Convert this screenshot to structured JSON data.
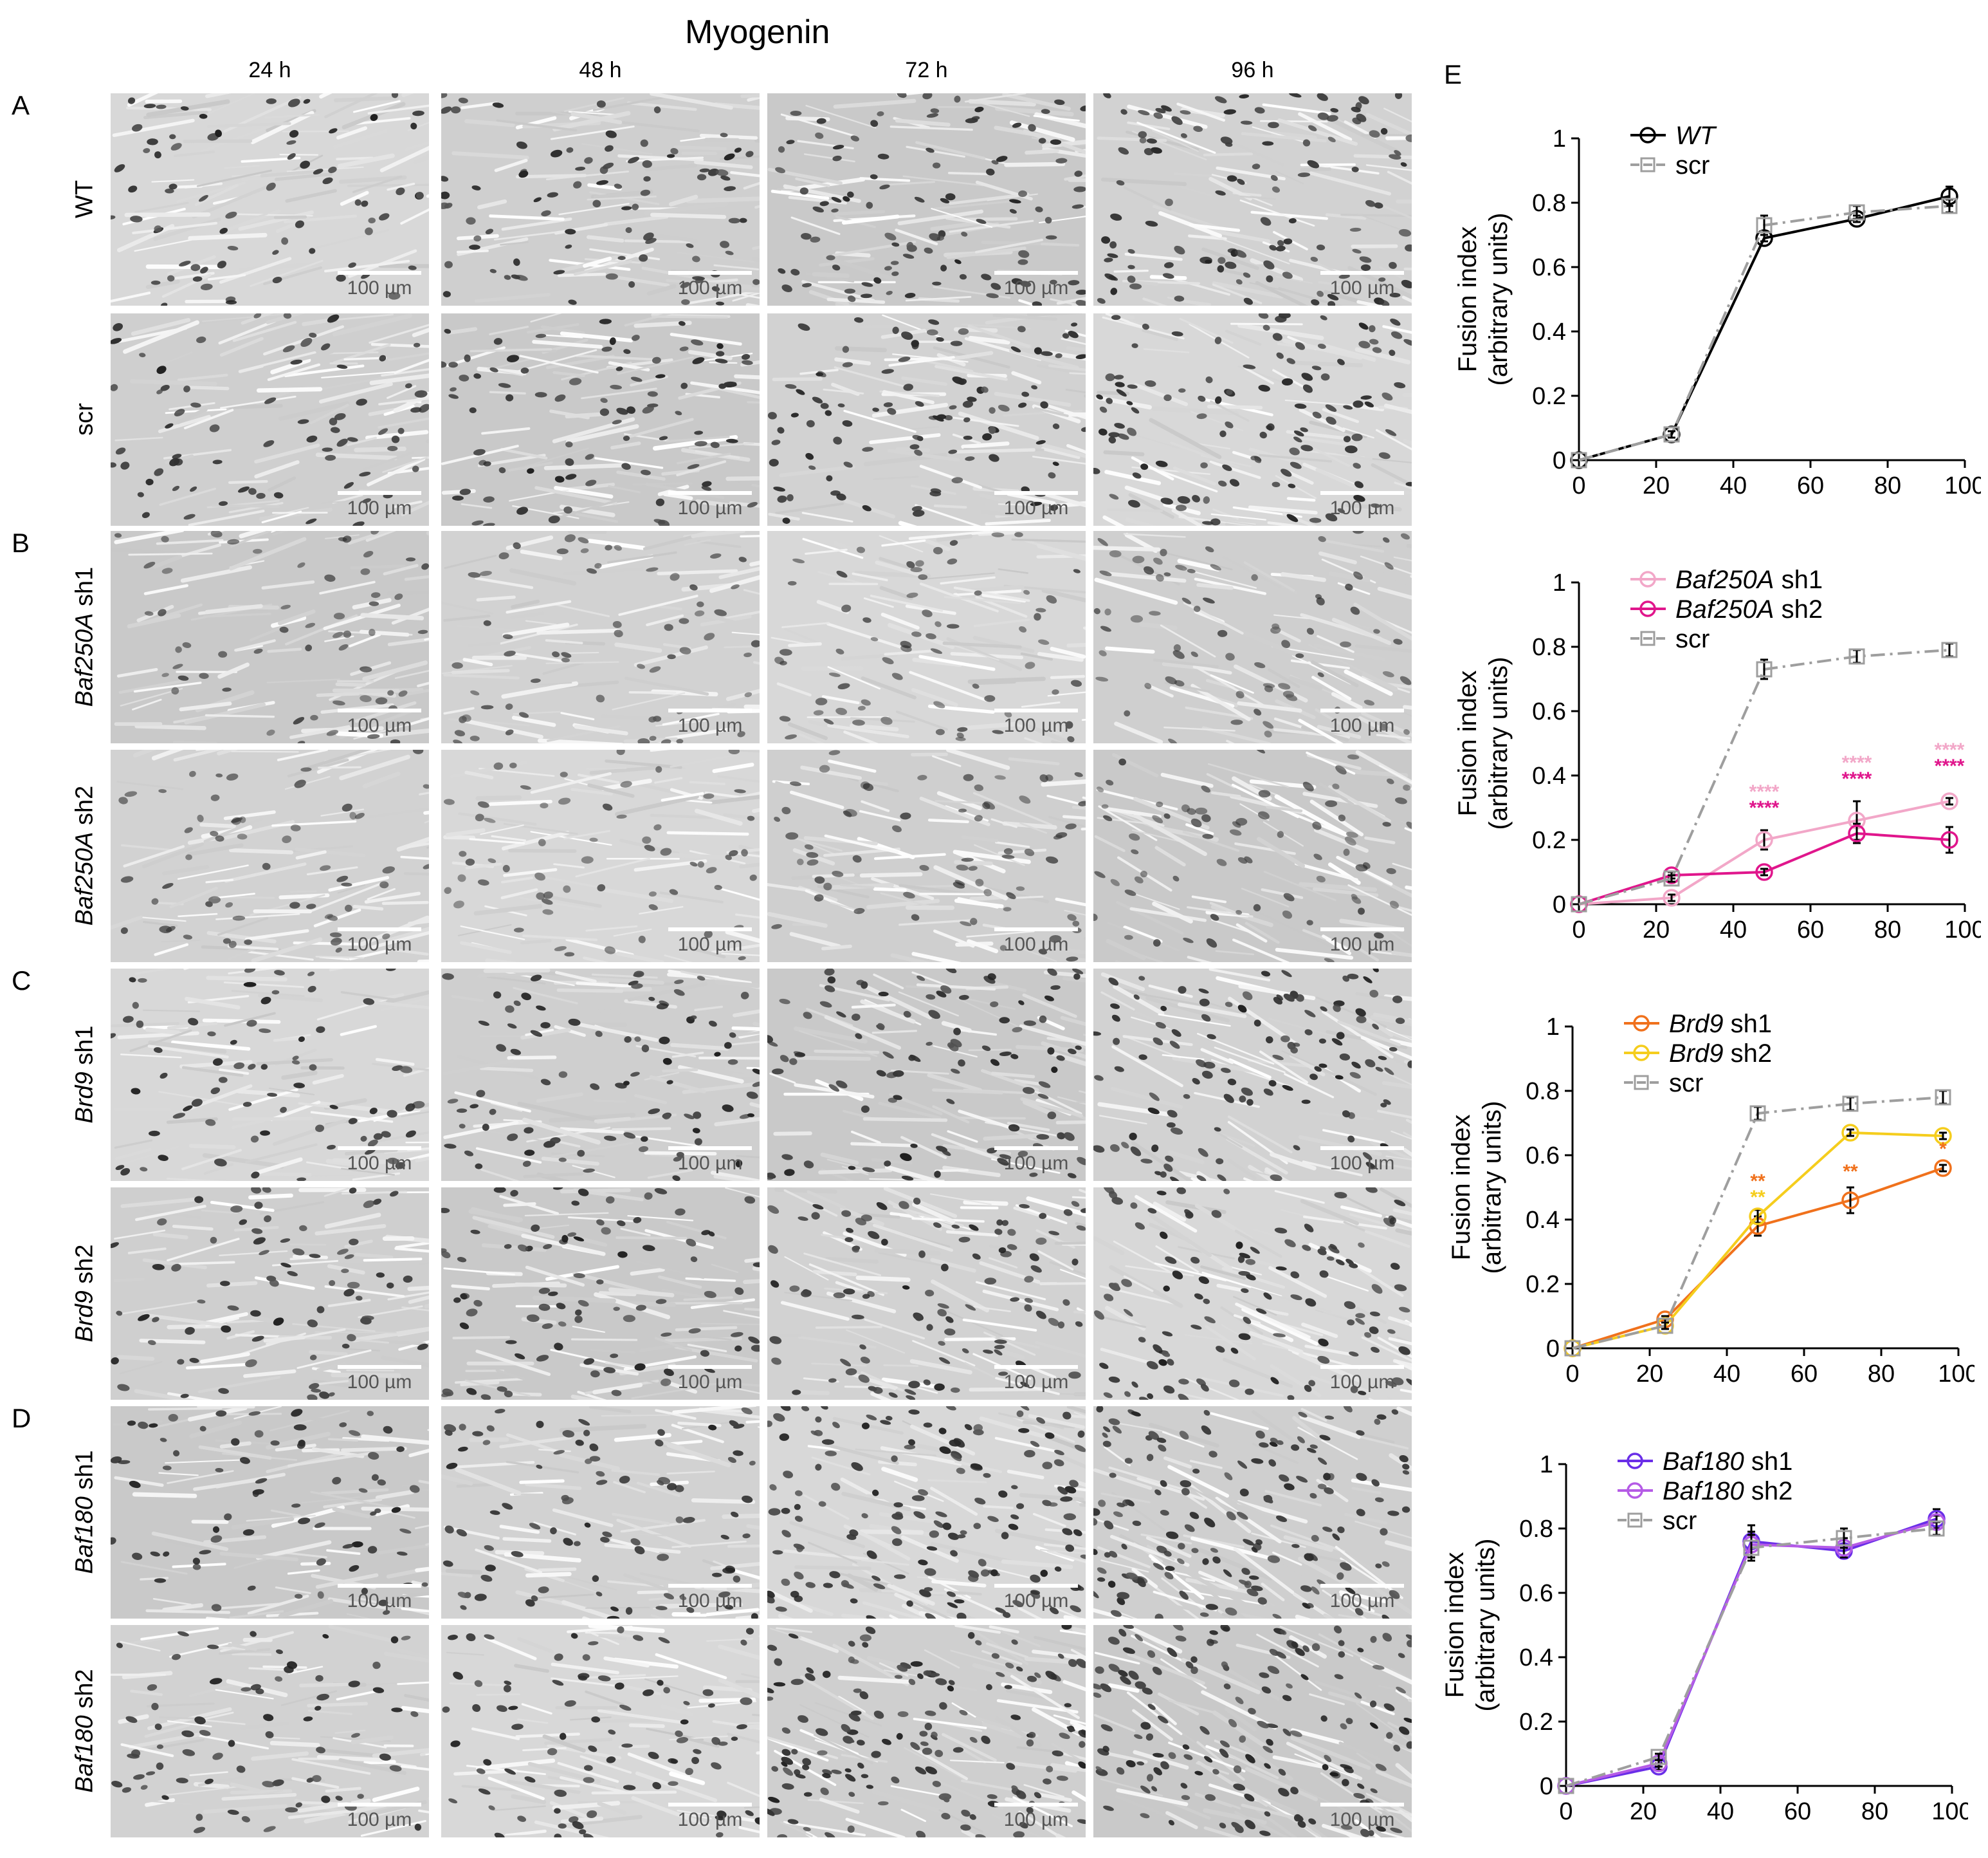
{
  "figure": {
    "title": "Myogenin",
    "time_columns": [
      "24 h",
      "48 h",
      "72 h",
      "96 h"
    ],
    "scale_bar_label": "100 µm",
    "panel_letters": [
      "A",
      "B",
      "C",
      "D",
      "E"
    ],
    "rows": [
      {
        "gene": "WT",
        "suffix": "",
        "panel": "A"
      },
      {
        "gene": "scr",
        "suffix": "",
        "panel": ""
      },
      {
        "gene": "Baf250A",
        "suffix": " sh1",
        "panel": "B"
      },
      {
        "gene": "Baf250A",
        "suffix": " sh2",
        "panel": ""
      },
      {
        "gene": "Brd9",
        "suffix": " sh1",
        "panel": "C"
      },
      {
        "gene": "Brd9",
        "suffix": " sh2",
        "panel": ""
      },
      {
        "gene": "Baf180",
        "suffix": " sh1",
        "panel": "D"
      },
      {
        "gene": "Baf180",
        "suffix": " sh2",
        "panel": ""
      }
    ]
  },
  "chart_data": [
    {
      "type": "line",
      "ylabel": [
        "Fusion index",
        "(arbitrary units)"
      ],
      "x_ticks": [
        0,
        20,
        40,
        60,
        80,
        100
      ],
      "y_ticks": [
        0,
        0.2,
        0.4,
        0.6,
        0.8,
        1
      ],
      "y_tick_labels": [
        "0",
        "0.2",
        "0.4",
        "0.6",
        "0.8",
        "1"
      ],
      "xlim": [
        0,
        100
      ],
      "ylim": [
        0,
        1
      ],
      "legend_position": "top-left",
      "series": [
        {
          "gene": "WT",
          "suffix": "",
          "color": "#000000",
          "marker": "circle",
          "dashed": false,
          "x": [
            0,
            24,
            48,
            72,
            96
          ],
          "y": [
            0,
            0.08,
            0.69,
            0.75,
            0.82
          ],
          "err": [
            0,
            0.01,
            0.01,
            0.01,
            0.03
          ]
        },
        {
          "gene": "",
          "suffix": "scr",
          "color": "#9e9e9e",
          "marker": "square",
          "dashed": true,
          "x": [
            0,
            24,
            48,
            72,
            96
          ],
          "y": [
            0,
            0.08,
            0.73,
            0.77,
            0.79
          ],
          "err": [
            0,
            0.01,
            0.03,
            0.02,
            0.02
          ]
        }
      ],
      "annotations": []
    },
    {
      "type": "line",
      "ylabel": [
        "Fusion index",
        "(arbitrary units)"
      ],
      "x_ticks": [
        0,
        20,
        40,
        60,
        80,
        100
      ],
      "y_ticks": [
        0,
        0.2,
        0.4,
        0.6,
        0.8,
        1
      ],
      "y_tick_labels": [
        "0",
        "0.2",
        "0.4",
        "0.6",
        "0.8",
        "1"
      ],
      "xlim": [
        0,
        100
      ],
      "ylim": [
        0,
        1
      ],
      "legend_position": "top-left",
      "series": [
        {
          "gene": "Baf250A",
          "suffix": " sh1",
          "color": "#f2a7c8",
          "marker": "circle",
          "dashed": false,
          "x": [
            0,
            24,
            48,
            72,
            96
          ],
          "y": [
            0,
            0.02,
            0.2,
            0.26,
            0.32
          ],
          "err": [
            0,
            0.01,
            0.03,
            0.06,
            0.01
          ]
        },
        {
          "gene": "Baf250A",
          "suffix": " sh2",
          "color": "#e0168c",
          "marker": "circle",
          "dashed": false,
          "x": [
            0,
            24,
            48,
            72,
            96
          ],
          "y": [
            0,
            0.09,
            0.1,
            0.22,
            0.2
          ],
          "err": [
            0,
            0.01,
            0.01,
            0.03,
            0.04
          ]
        },
        {
          "gene": "",
          "suffix": "scr",
          "color": "#9e9e9e",
          "marker": "square",
          "dashed": true,
          "x": [
            0,
            24,
            48,
            72,
            96
          ],
          "y": [
            0,
            0.08,
            0.73,
            0.77,
            0.79
          ],
          "err": [
            0,
            0.01,
            0.03,
            0.02,
            0.02
          ]
        }
      ],
      "annotations": [
        {
          "x": 48,
          "y": 0.33,
          "text": "****",
          "color": "#f2a7c8"
        },
        {
          "x": 48,
          "y": 0.28,
          "text": "****",
          "color": "#e0168c"
        },
        {
          "x": 72,
          "y": 0.42,
          "text": "****",
          "color": "#f2a7c8"
        },
        {
          "x": 72,
          "y": 0.37,
          "text": "****",
          "color": "#e0168c"
        },
        {
          "x": 96,
          "y": 0.46,
          "text": "****",
          "color": "#f2a7c8"
        },
        {
          "x": 96,
          "y": 0.41,
          "text": "****",
          "color": "#e0168c"
        }
      ]
    },
    {
      "type": "line",
      "ylabel": [
        "Fusion index",
        "(arbitrary units)"
      ],
      "x_ticks": [
        0,
        20,
        40,
        60,
        80,
        100
      ],
      "y_ticks": [
        0,
        0.2,
        0.4,
        0.6,
        0.8,
        1
      ],
      "y_tick_labels": [
        "0",
        "0.2",
        "0.4",
        "0.6",
        "0.8",
        "1"
      ],
      "xlim": [
        0,
        100
      ],
      "ylim": [
        0,
        1
      ],
      "legend_position": "top-left",
      "series": [
        {
          "gene": "Brd9",
          "suffix": " sh1",
          "color": "#f0711c",
          "marker": "circle",
          "dashed": false,
          "x": [
            0,
            24,
            48,
            72,
            96
          ],
          "y": [
            0,
            0.09,
            0.38,
            0.46,
            0.56
          ],
          "err": [
            0,
            0.01,
            0.03,
            0.04,
            0.01
          ]
        },
        {
          "gene": "Brd9",
          "suffix": " sh2",
          "color": "#f5cd1d",
          "marker": "circle",
          "dashed": false,
          "x": [
            0,
            24,
            48,
            72,
            96
          ],
          "y": [
            0,
            0.07,
            0.41,
            0.67,
            0.66
          ],
          "err": [
            0,
            0.01,
            0.02,
            0.01,
            0.01
          ]
        },
        {
          "gene": "",
          "suffix": "scr",
          "color": "#9e9e9e",
          "marker": "square",
          "dashed": true,
          "x": [
            0,
            24,
            48,
            72,
            96
          ],
          "y": [
            0,
            0.07,
            0.73,
            0.76,
            0.78
          ],
          "err": [
            0,
            0.01,
            0.02,
            0.02,
            0.02
          ]
        }
      ],
      "annotations": [
        {
          "x": 48,
          "y": 0.5,
          "text": "**",
          "color": "#f0711c"
        },
        {
          "x": 48,
          "y": 0.45,
          "text": "**",
          "color": "#f5cd1d"
        },
        {
          "x": 72,
          "y": 0.53,
          "text": "**",
          "color": "#f0711c"
        },
        {
          "x": 96,
          "y": 0.6,
          "text": "*",
          "color": "#f0711c"
        }
      ]
    },
    {
      "type": "line",
      "ylabel": [
        "Fusion index",
        "(arbitrary units)"
      ],
      "x_ticks": [
        0,
        20,
        40,
        60,
        80,
        100
      ],
      "y_ticks": [
        0,
        0.2,
        0.4,
        0.6,
        0.8,
        1
      ],
      "y_tick_labels": [
        "0",
        "0.2",
        "0.4",
        "0.6",
        "0.8",
        "1"
      ],
      "xlim": [
        0,
        100
      ],
      "ylim": [
        0,
        1
      ],
      "legend_position": "top-left",
      "series": [
        {
          "gene": "Baf180",
          "suffix": " sh1",
          "color": "#6a2ee8",
          "marker": "circle",
          "dashed": false,
          "x": [
            0,
            24,
            48,
            72,
            96
          ],
          "y": [
            0,
            0.06,
            0.76,
            0.73,
            0.83
          ],
          "err": [
            0,
            0.01,
            0.05,
            0.02,
            0.03
          ]
        },
        {
          "gene": "Baf180",
          "suffix": " sh2",
          "color": "#b55be6",
          "marker": "circle",
          "dashed": false,
          "x": [
            0,
            24,
            48,
            72,
            96
          ],
          "y": [
            0,
            0.07,
            0.75,
            0.74,
            0.82
          ],
          "err": [
            0,
            0.01,
            0.04,
            0.03,
            0.02
          ]
        },
        {
          "gene": "",
          "suffix": "scr",
          "color": "#9e9e9e",
          "marker": "square",
          "dashed": true,
          "x": [
            0,
            24,
            48,
            72,
            96
          ],
          "y": [
            0,
            0.09,
            0.74,
            0.77,
            0.8
          ],
          "err": [
            0,
            0.01,
            0.04,
            0.03,
            0.02
          ]
        }
      ],
      "annotations": []
    }
  ]
}
